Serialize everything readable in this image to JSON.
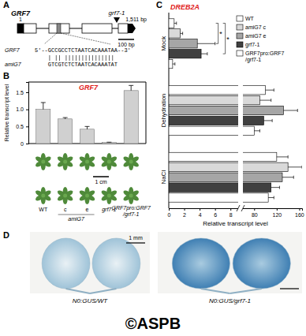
{
  "figure": {
    "panel_labels": [
      "A",
      "B",
      "C",
      "D"
    ],
    "gene_diagram": {
      "gene": "GRF7",
      "start_label": "1",
      "length_label": "1,511 bp",
      "mutant": "grf7-1",
      "scale_bar": "100 bp"
    },
    "alignment": {
      "rows": [
        {
          "name": "GRF7",
          "sequence": "5'--GCCGCCTCTAATCACAAATAA--3'"
        },
        {
          "name": "amiG7",
          "sequence": "GTCGTCTCTAATCACAAATAT"
        }
      ]
    },
    "plant_photo": {
      "group_label": "amiG7",
      "scale_bar": "1 cm"
    },
    "gus": {
      "labels": [
        "N0:GUS/WT",
        "N0:GUS/grf7-1"
      ],
      "scale_bar": "1 mm"
    },
    "watermark": "©ASPB"
  },
  "chart_data": [
    {
      "type": "bar",
      "title": "GRF7",
      "y_label": "Relative transcript level",
      "categories": [
        "WT",
        "c",
        "e",
        "grf7-1",
        "GRF7pro:GRF7/grf7-1"
      ],
      "values": [
        1.0,
        0.72,
        0.42,
        0.03,
        1.55
      ],
      "errors": [
        0.2,
        0.04,
        0.08,
        0.01,
        0.15
      ],
      "color": "#d0d0d0",
      "ylim": [
        0,
        1.8
      ],
      "yticks": [
        0,
        0.5,
        {
          "value": 1,
          "label": "1.0"
        },
        1.5
      ]
    },
    {
      "type": "bar",
      "orientation": "horizontal",
      "title": "DREB2A",
      "x_label": "Relative transcript level",
      "categories": [
        "Mock",
        "Dehydration",
        "NaCl"
      ],
      "series": [
        {
          "name": "WT",
          "color": "#ffffff",
          "values": [
            0.7,
            100,
            120
          ],
          "errors": [
            0.3,
            15,
            20
          ]
        },
        {
          "name": "amiG7 c",
          "color": "#d9d9d9",
          "values": [
            1.5,
            90,
            140
          ],
          "errors": [
            0.3,
            20,
            25
          ]
        },
        {
          "name": "amiG7 e",
          "color": "#a6a6a6",
          "values": [
            3.7,
            132,
            130
          ],
          "errors": [
            2.3,
            25,
            20
          ]
        },
        {
          "name": "grf7-1",
          "color": "#404040",
          "values": [
            4.2,
            97,
            110
          ],
          "errors": [
            0.8,
            15,
            15
          ]
        },
        {
          "name": "GRF7pro:GRF7/grf7-1",
          "color": "#ffffff",
          "values": [
            0.5,
            80,
            105
          ],
          "errors": [
            0.3,
            10,
            10
          ]
        }
      ],
      "annotations": [
        "*",
        "*"
      ],
      "legend": "top-right",
      "xlim": [
        0,
        165
      ],
      "xticks": [
        0,
        2,
        4,
        6,
        8,
        80,
        120,
        160
      ]
    }
  ]
}
